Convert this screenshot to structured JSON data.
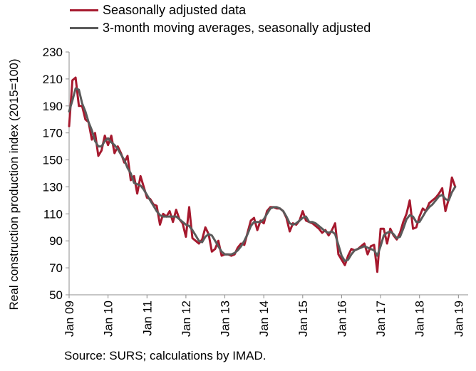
{
  "chart_data": {
    "type": "line",
    "ylabel": "Real construction production index (2015=100)",
    "xlabel": "",
    "ylim": [
      50,
      230
    ],
    "yticks": [
      50,
      70,
      90,
      110,
      130,
      150,
      170,
      190,
      210,
      230
    ],
    "x_tick_labels": [
      "Jan 09",
      "Jan 10",
      "Jan 11",
      "Jan 12",
      "Jan 13",
      "Jan 14",
      "Jan 15",
      "Jan 16",
      "Jan 17",
      "Jan 18",
      "Jan 19"
    ],
    "grid": false,
    "legend_position": "top-left",
    "x_dates": [
      "2009-01",
      "2009-02",
      "2009-03",
      "2009-04",
      "2009-05",
      "2009-06",
      "2009-07",
      "2009-08",
      "2009-09",
      "2009-10",
      "2009-11",
      "2009-12",
      "2010-01",
      "2010-02",
      "2010-03",
      "2010-04",
      "2010-05",
      "2010-06",
      "2010-07",
      "2010-08",
      "2010-09",
      "2010-10",
      "2010-11",
      "2010-12",
      "2011-01",
      "2011-02",
      "2011-03",
      "2011-04",
      "2011-05",
      "2011-06",
      "2011-07",
      "2011-08",
      "2011-09",
      "2011-10",
      "2011-11",
      "2011-12",
      "2012-01",
      "2012-02",
      "2012-03",
      "2012-04",
      "2012-05",
      "2012-06",
      "2012-07",
      "2012-08",
      "2012-09",
      "2012-10",
      "2012-11",
      "2012-12",
      "2013-01",
      "2013-02",
      "2013-03",
      "2013-04",
      "2013-05",
      "2013-06",
      "2013-07",
      "2013-08",
      "2013-09",
      "2013-10",
      "2013-11",
      "2013-12",
      "2014-01",
      "2014-02",
      "2014-03",
      "2014-04",
      "2014-05",
      "2014-06",
      "2014-07",
      "2014-08",
      "2014-09",
      "2014-10",
      "2014-11",
      "2014-12",
      "2015-01",
      "2015-02",
      "2015-03",
      "2015-04",
      "2015-05",
      "2015-06",
      "2015-07",
      "2015-08",
      "2015-09",
      "2015-10",
      "2015-11",
      "2015-12",
      "2016-01",
      "2016-02",
      "2016-03",
      "2016-04",
      "2016-05",
      "2016-06",
      "2016-07",
      "2016-08",
      "2016-09",
      "2016-10",
      "2016-11",
      "2016-12",
      "2017-01",
      "2017-02",
      "2017-03",
      "2017-04",
      "2017-05",
      "2017-06",
      "2017-07",
      "2017-08",
      "2017-09",
      "2017-10",
      "2017-11",
      "2017-12",
      "2018-01",
      "2018-02",
      "2018-03",
      "2018-04",
      "2018-05",
      "2018-06",
      "2018-07",
      "2018-08",
      "2018-09",
      "2018-10",
      "2018-11",
      "2018-12",
      "2019-01",
      "2019-02",
      "2019-03",
      "2019-04"
    ],
    "series": [
      {
        "name": "Seasonally adjusted data",
        "color": "#a6192e",
        "values": [
          175,
          209,
          211,
          190,
          190,
          180,
          178,
          165,
          170,
          153,
          157,
          168,
          161,
          168,
          155,
          160,
          155,
          148,
          153,
          135,
          138,
          125,
          138,
          130,
          122,
          121,
          117,
          116,
          102,
          110,
          108,
          112,
          104,
          113,
          106,
          103,
          93,
          115,
          92,
          90,
          88,
          91,
          100,
          95,
          82,
          84,
          90,
          79,
          80,
          80,
          79,
          80,
          85,
          88,
          87,
          96,
          105,
          107,
          98,
          105,
          103,
          112,
          115,
          115,
          114,
          114,
          112,
          107,
          97,
          103,
          102,
          105,
          112,
          105,
          104,
          103,
          101,
          99,
          96,
          98,
          94,
          98,
          103,
          80,
          76,
          72,
          79,
          84,
          83,
          84,
          86,
          88,
          80,
          86,
          87,
          67,
          99,
          99,
          88,
          99,
          94,
          91,
          96,
          104,
          110,
          120,
          99,
          100,
          108,
          114,
          112,
          118,
          120,
          122,
          125,
          129,
          112,
          121,
          137,
          130
        ]
      },
      {
        "name": "3-month moving averages, seasonally adjusted",
        "color": "#5a5a5a",
        "values": [
          186,
          194,
          203,
          202,
          192,
          186,
          178,
          172,
          164,
          160,
          160,
          164,
          166,
          163,
          161,
          158,
          154,
          150,
          144,
          140,
          133,
          132,
          131,
          128,
          124,
          120,
          116,
          112,
          109,
          108,
          108,
          108,
          108,
          108,
          106,
          104,
          102,
          101,
          98,
          94,
          90,
          89,
          93,
          95,
          94,
          90,
          86,
          82,
          80,
          80,
          80,
          81,
          83,
          86,
          90,
          95,
          101,
          104,
          104,
          104,
          106,
          110,
          114,
          115,
          115,
          114,
          112,
          108,
          103,
          102,
          103,
          105,
          107,
          108,
          104,
          104,
          103,
          101,
          99,
          97,
          96,
          97,
          95,
          87,
          79,
          75,
          76,
          80,
          83,
          84,
          85,
          86,
          85,
          84,
          83,
          79,
          86,
          94,
          96,
          97,
          95,
          92,
          93,
          99,
          106,
          109,
          108,
          104,
          104,
          108,
          112,
          115,
          117,
          120,
          123,
          124,
          121,
          120,
          126,
          130
        ]
      }
    ]
  },
  "legend": {
    "items": [
      {
        "label": "Seasonally adjusted data",
        "color": "#a6192e"
      },
      {
        "label": "3-month moving averages, seasonally adjusted",
        "color": "#5a5a5a"
      }
    ]
  },
  "footer": {
    "source": "Source: SURS; calculations by IMAD."
  }
}
